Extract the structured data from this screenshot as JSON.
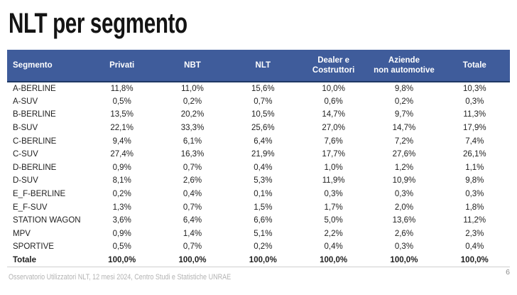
{
  "slide": {
    "title": "NLT per segmento",
    "footer": "Osservatorio Utilizzatori NLT, 12 mesi 2024, Centro Studi e Statistiche UNRAE",
    "page_number": "6"
  },
  "colors": {
    "header_bg": "#3F5C9B",
    "header_border": "#1F3864",
    "header_text": "#FFFFFF",
    "body_text": "#1F1F1F",
    "footer_text": "#B3B3B3",
    "table_bottom_border": "#CFCFCF"
  },
  "chart_data": {
    "type": "table",
    "title": "NLT per segmento",
    "columns": [
      "Segmento",
      "Privati",
      "NBT",
      "NLT",
      "Dealer e\nCostruttori",
      "Aziende\nnon automotive",
      "Totale"
    ],
    "rows": [
      [
        "A-BERLINE",
        "11,8%",
        "11,0%",
        "15,6%",
        "10,0%",
        "9,8%",
        "10,3%"
      ],
      [
        "A-SUV",
        "0,5%",
        "0,2%",
        "0,7%",
        "0,6%",
        "0,2%",
        "0,3%"
      ],
      [
        "B-BERLINE",
        "13,5%",
        "20,2%",
        "10,5%",
        "14,7%",
        "9,7%",
        "11,3%"
      ],
      [
        "B-SUV",
        "22,1%",
        "33,3%",
        "25,6%",
        "27,0%",
        "14,7%",
        "17,9%"
      ],
      [
        "C-BERLINE",
        "9,4%",
        "6,1%",
        "6,4%",
        "7,6%",
        "7,2%",
        "7,4%"
      ],
      [
        "C-SUV",
        "27,4%",
        "16,3%",
        "21,9%",
        "17,7%",
        "27,6%",
        "26,1%"
      ],
      [
        "D-BERLINE",
        "0,9%",
        "0,7%",
        "0,4%",
        "1,0%",
        "1,2%",
        "1,1%"
      ],
      [
        "D-SUV",
        "8,1%",
        "2,6%",
        "5,3%",
        "11,9%",
        "10,9%",
        "9,8%"
      ],
      [
        "E_F-BERLINE",
        "0,2%",
        "0,4%",
        "0,1%",
        "0,3%",
        "0,3%",
        "0,3%"
      ],
      [
        "E_F-SUV",
        "1,3%",
        "0,7%",
        "1,5%",
        "1,7%",
        "2,0%",
        "1,8%"
      ],
      [
        "STATION WAGON",
        "3,6%",
        "6,4%",
        "6,6%",
        "5,0%",
        "13,6%",
        "11,2%"
      ],
      [
        "MPV",
        "0,9%",
        "1,4%",
        "5,1%",
        "2,2%",
        "2,6%",
        "2,3%"
      ],
      [
        "SPORTIVE",
        "0,5%",
        "0,7%",
        "0,2%",
        "0,4%",
        "0,3%",
        "0,4%"
      ]
    ],
    "total_row": [
      "Totale",
      "100,0%",
      "100,0%",
      "100,0%",
      "100,0%",
      "100,0%",
      "100,0%"
    ]
  }
}
